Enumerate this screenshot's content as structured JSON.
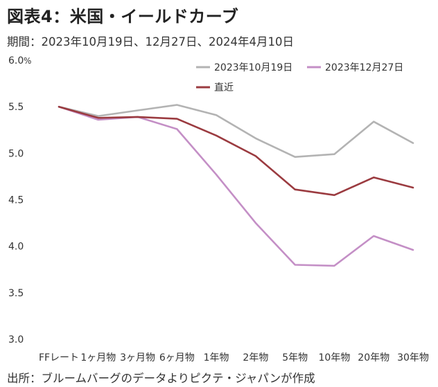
{
  "title": "図表4：米国・イールドカーブ",
  "subtitle": "期間：2023年10月19日、12月27日、2024年4月10日",
  "source": "出所：ブルームバーグのデータよりピクテ・ジャパンが作成",
  "y_unit": "%",
  "chart_data": {
    "type": "line",
    "categories": [
      "FFレート",
      "1ヶ月物",
      "3ヶ月物",
      "6ヶ月物",
      "1年物",
      "2年物",
      "5年物",
      "10年物",
      "20年物",
      "30年物"
    ],
    "series": [
      {
        "name": "2023年10月19日",
        "color": "#b3b3b3",
        "values": [
          5.5,
          5.4,
          5.46,
          5.52,
          5.41,
          5.16,
          4.96,
          4.99,
          5.34,
          5.11
        ]
      },
      {
        "name": "2023年12月27日",
        "color": "#c48fc6",
        "values": [
          5.5,
          5.36,
          5.39,
          5.26,
          4.77,
          4.25,
          3.8,
          3.79,
          4.11,
          3.96
        ]
      },
      {
        "name": "直近",
        "color": "#9b3b40",
        "values": [
          5.5,
          5.38,
          5.39,
          5.37,
          5.19,
          4.97,
          4.61,
          4.55,
          4.74,
          4.63
        ]
      }
    ],
    "ylim": [
      3.0,
      6.0
    ],
    "yticks": [
      "3.0",
      "3.5",
      "4.0",
      "4.5",
      "5.0",
      "5.5",
      "6.0"
    ],
    "grid": false,
    "legend_position": "top-right"
  }
}
